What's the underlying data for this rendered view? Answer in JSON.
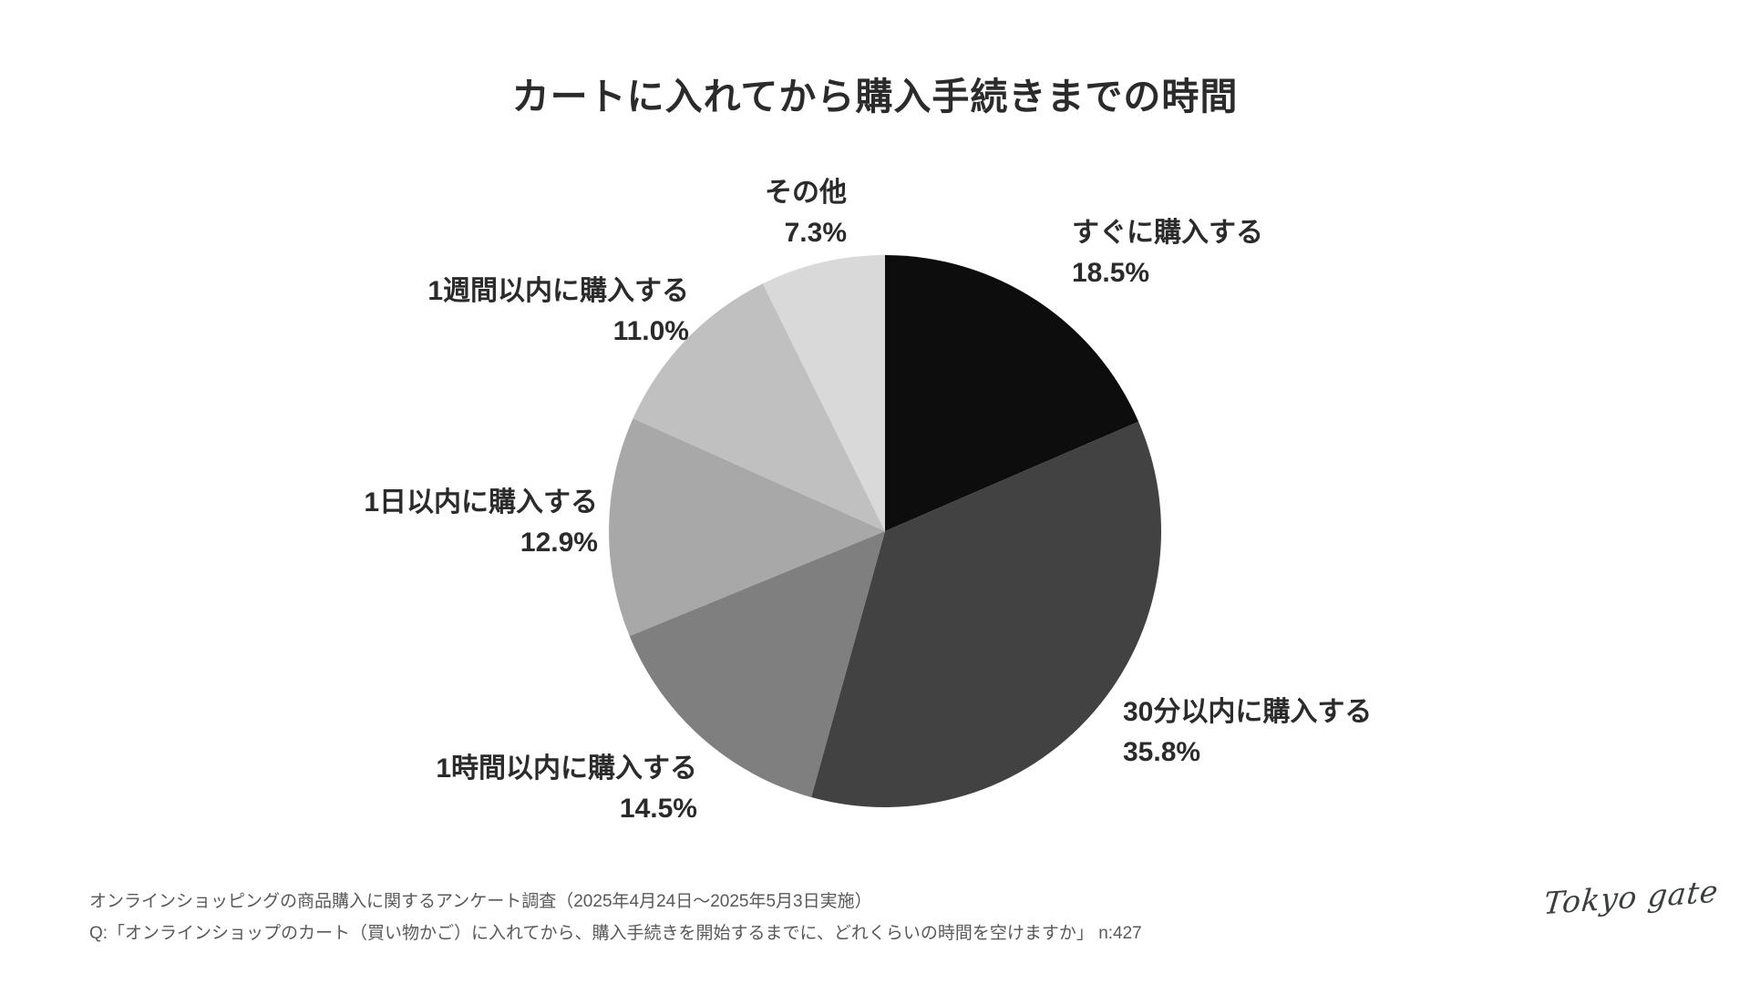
{
  "title": "カートに入れてから購入手続きまでの時間",
  "chart_data": {
    "type": "pie",
    "title": "カートに入れてから購入手続きまでの時間",
    "unit": "%",
    "start_angle_deg": -90,
    "direction": "clockwise",
    "legend_position": "none (direct two-line labels around pie)",
    "total": 100.0,
    "slices": [
      {
        "label": "すぐに購入する",
        "value": 18.5,
        "pct_text": "18.5%",
        "color": "#0d0d0d"
      },
      {
        "label": "30分以内に購入する",
        "value": 35.8,
        "pct_text": "35.8%",
        "color": "#424242"
      },
      {
        "label": "1時間以内に購入する",
        "value": 14.5,
        "pct_text": "14.5%",
        "color": "#7f7f7f"
      },
      {
        "label": "1日以内に購入する",
        "value": 12.9,
        "pct_text": "12.9%",
        "color": "#a8a8a8"
      },
      {
        "label": "1週間以内に購入する",
        "value": 11.0,
        "pct_text": "11.0%",
        "color": "#c0c0c0"
      },
      {
        "label": "その他",
        "value": 7.3,
        "pct_text": "7.3%",
        "color": "#d9d9d9"
      }
    ]
  },
  "footer": {
    "source_line": "オンラインショッピングの商品購入に関するアンケート調査（2025年4月24日～2025年5月3日実施）",
    "question_line": "Q:「オンラインショップのカート（買い物かご）に入れてから、購入手続きを開始するまでに、どれくらいの時間を空けますか」 n:427",
    "logo_text": "Tokyo gate"
  },
  "colors": {
    "background": "#ffffff",
    "title_text": "#2b2b2b",
    "label_text": "#2b2b2b",
    "footer_text": "#595959",
    "logo_text": "#3a3f3b"
  }
}
